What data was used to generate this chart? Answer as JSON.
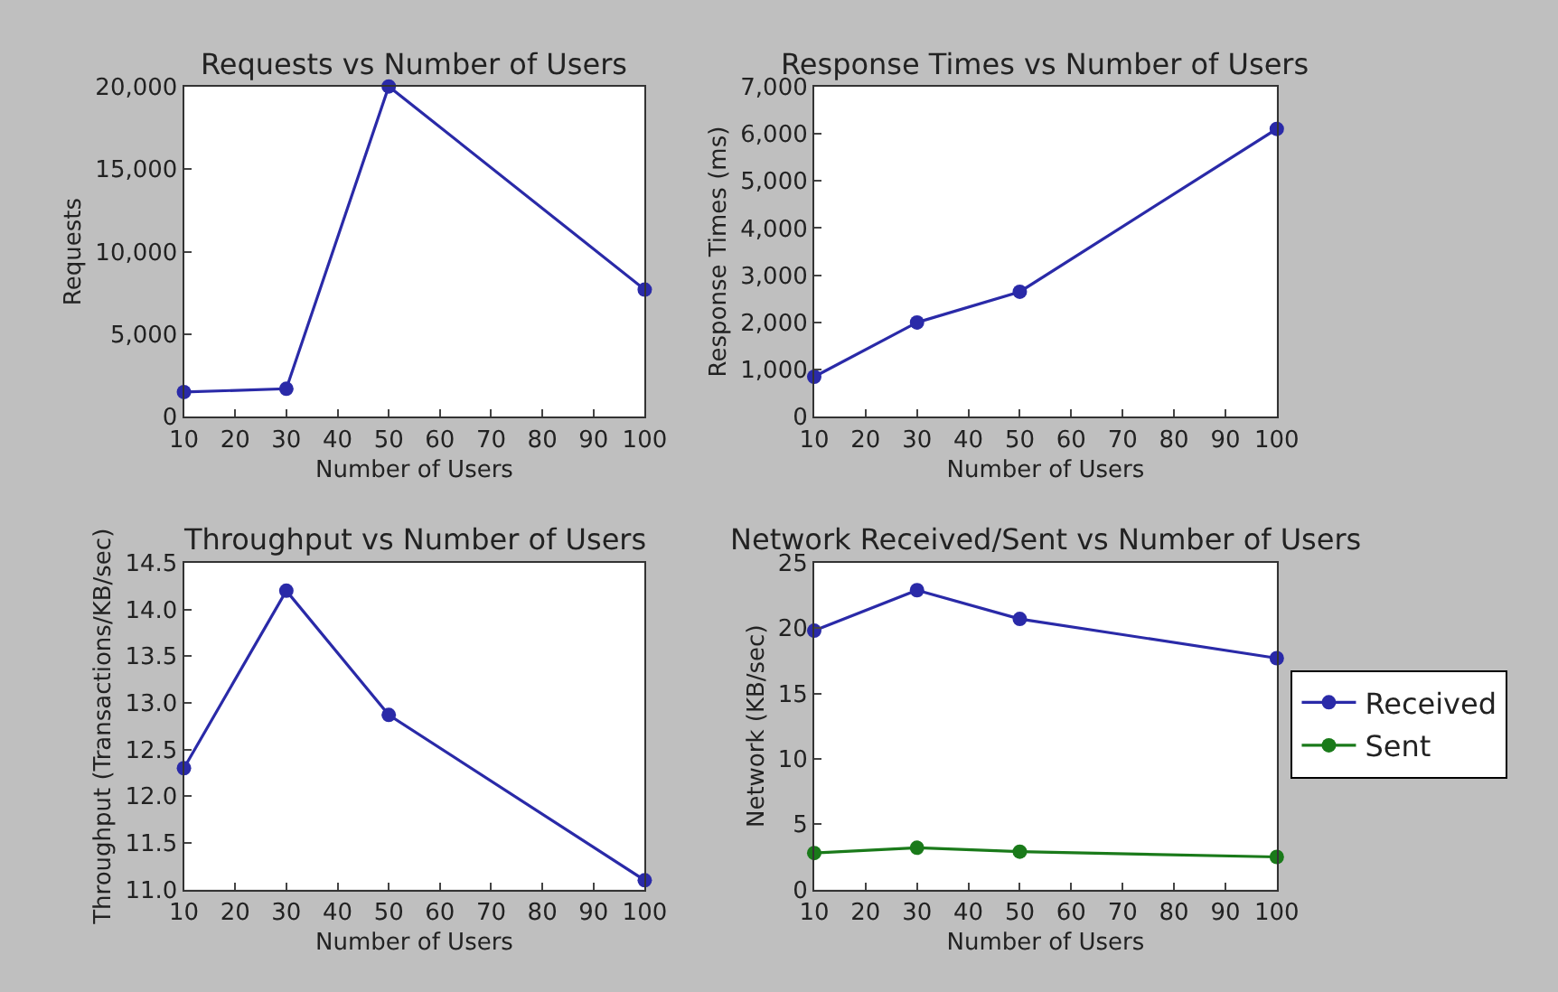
{
  "chart_data": [
    {
      "type": "line",
      "title": "Requests vs Number of Users",
      "xlabel": "Number of Users",
      "ylabel": "Requests",
      "x": [
        10,
        30,
        50,
        100
      ],
      "series": [
        {
          "color": "#2a2aa8",
          "values": [
            1500,
            1700,
            20000,
            7700
          ]
        }
      ],
      "xlim": [
        10,
        100
      ],
      "xticks": [
        10,
        20,
        30,
        40,
        50,
        60,
        70,
        80,
        90,
        100
      ],
      "ylim": [
        0,
        20000
      ],
      "yticks": [
        0,
        {
          "value": 5000,
          "label": "5,000"
        },
        {
          "value": 10000,
          "label": "10,000"
        },
        {
          "value": 15000,
          "label": "15,000"
        },
        {
          "value": 20000,
          "label": "20,000"
        }
      ],
      "marker": "circle",
      "grid": false,
      "legend": false
    },
    {
      "type": "line",
      "title": "Response Times vs Number of Users",
      "xlabel": "Number of Users",
      "ylabel": "Response Times (ms)",
      "x": [
        10,
        30,
        50,
        100
      ],
      "series": [
        {
          "color": "#2a2aa8",
          "values": [
            850,
            2000,
            2650,
            6100
          ]
        }
      ],
      "xlim": [
        10,
        100
      ],
      "xticks": [
        10,
        20,
        30,
        40,
        50,
        60,
        70,
        80,
        90,
        100
      ],
      "ylim": [
        0,
        7000
      ],
      "yticks": [
        0,
        {
          "value": 1000,
          "label": "1,000"
        },
        {
          "value": 2000,
          "label": "2,000"
        },
        {
          "value": 3000,
          "label": "3,000"
        },
        {
          "value": 4000,
          "label": "4,000"
        },
        {
          "value": 5000,
          "label": "5,000"
        },
        {
          "value": 6000,
          "label": "6,000"
        },
        {
          "value": 7000,
          "label": "7,000"
        }
      ],
      "marker": "circle",
      "grid": false,
      "legend": false
    },
    {
      "type": "line",
      "title": "Throughput vs Number of Users",
      "xlabel": "Number of Users",
      "ylabel": "Throughput (Transactions/KB/sec)",
      "x": [
        10,
        30,
        50,
        100
      ],
      "series": [
        {
          "color": "#2a2aa8",
          "values": [
            12.3,
            14.2,
            12.87,
            11.1
          ]
        }
      ],
      "xlim": [
        10,
        100
      ],
      "xticks": [
        10,
        20,
        30,
        40,
        50,
        60,
        70,
        80,
        90,
        100
      ],
      "ylim": [
        11.0,
        14.5
      ],
      "yticks": [
        {
          "value": 11,
          "label": "11.0"
        },
        11.5,
        {
          "value": 12,
          "label": "12.0"
        },
        12.5,
        {
          "value": 13,
          "label": "13.0"
        },
        13.5,
        {
          "value": 14,
          "label": "14.0"
        },
        14.5
      ],
      "marker": "circle",
      "grid": false,
      "legend": false
    },
    {
      "type": "line",
      "title": "Network Received/Sent vs Number of Users",
      "xlabel": "Number of Users",
      "ylabel": "Network (KB/sec)",
      "x": [
        10,
        30,
        50,
        100
      ],
      "series": [
        {
          "name": "Received",
          "color": "#2a2aa8",
          "values": [
            19.8,
            22.9,
            20.7,
            17.7
          ]
        },
        {
          "name": "Sent",
          "color": "#1a7a1a",
          "values": [
            2.8,
            3.2,
            2.9,
            2.5
          ]
        }
      ],
      "xlim": [
        10,
        100
      ],
      "xticks": [
        10,
        20,
        30,
        40,
        50,
        60,
        70,
        80,
        90,
        100
      ],
      "ylim": [
        0,
        25
      ],
      "yticks": [
        0,
        5,
        10,
        15,
        20,
        25
      ],
      "marker": "circle",
      "grid": false,
      "legend": "right"
    }
  ]
}
